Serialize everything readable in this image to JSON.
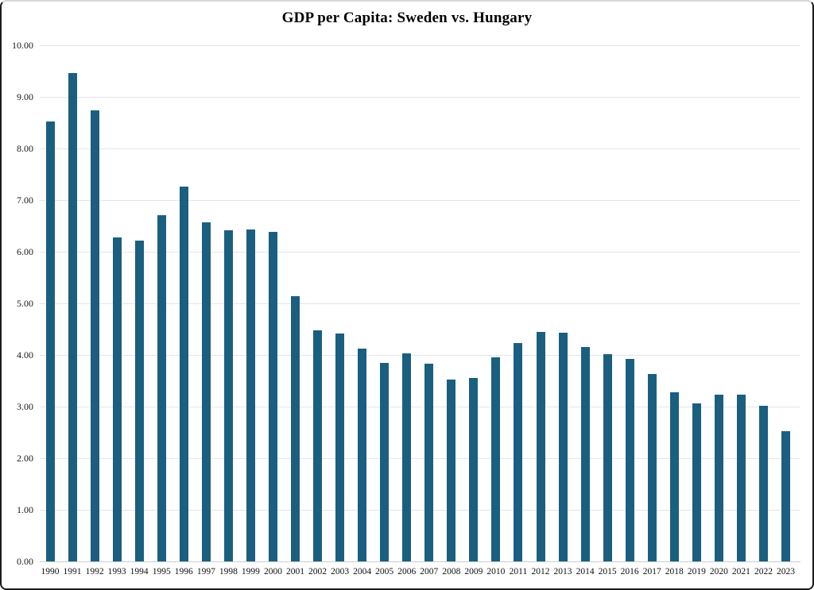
{
  "chart_data": {
    "type": "bar",
    "title": "GDP per Capita: Sweden vs. Hungary",
    "xlabel": "",
    "ylabel": "",
    "categories": [
      "1990",
      "1991",
      "1992",
      "1993",
      "1994",
      "1995",
      "1996",
      "1997",
      "1998",
      "1999",
      "2000",
      "2001",
      "2002",
      "2003",
      "2004",
      "2005",
      "2006",
      "2007",
      "2008",
      "2009",
      "2010",
      "2011",
      "2012",
      "2013",
      "2014",
      "2015",
      "2016",
      "2017",
      "2018",
      "2019",
      "2020",
      "2021",
      "2022",
      "2023"
    ],
    "values": [
      8.53,
      9.46,
      8.74,
      6.27,
      6.21,
      6.7,
      7.26,
      6.57,
      6.42,
      6.43,
      6.38,
      5.14,
      4.48,
      4.42,
      4.13,
      3.85,
      4.03,
      3.83,
      3.53,
      3.56,
      3.96,
      4.23,
      4.45,
      4.43,
      4.15,
      4.01,
      3.93,
      3.63,
      3.28,
      3.06,
      3.23,
      3.23,
      3.01,
      2.52
    ],
    "ylim": [
      0,
      10
    ],
    "ytick_labels": [
      "0.00",
      "1.00",
      "2.00",
      "3.00",
      "4.00",
      "5.00",
      "6.00",
      "7.00",
      "8.00",
      "9.00",
      "10.00"
    ],
    "grid": true,
    "legend_position": "none",
    "bar_color": "#1a5f80",
    "gridline_color": "#e5e5e5",
    "baseline_color": "#cccccc",
    "background_color": "#ffffff"
  }
}
